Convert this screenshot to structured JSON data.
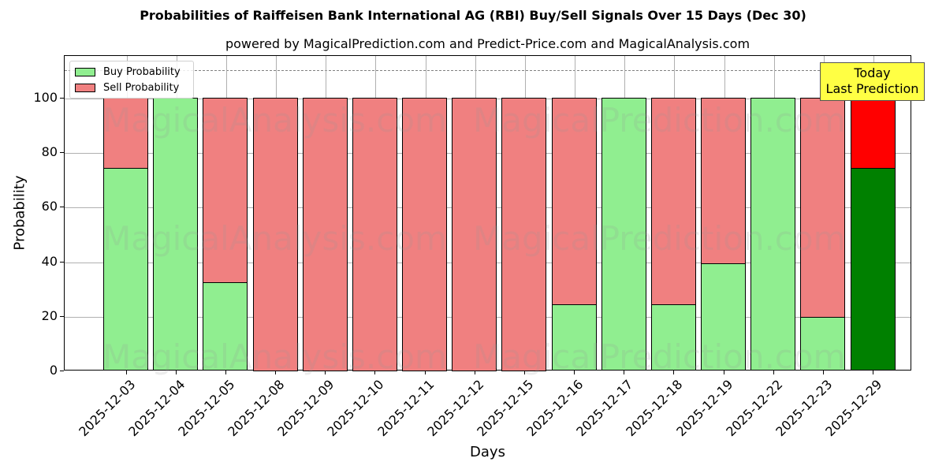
{
  "chart_data": {
    "type": "bar",
    "stacked": true,
    "title": "Probabilities of Raiffeisen Bank International AG (RBI) Buy/Sell Signals Over 15 Days (Dec 30)",
    "subtitle": "powered by MagicalPrediction.com and Predict-Price.com and MagicalAnalysis.com",
    "xlabel": "Days",
    "ylabel": "Probability",
    "ylim": [
      0,
      115
    ],
    "yticks": [
      0,
      20,
      40,
      60,
      80,
      100
    ],
    "grid": true,
    "legend_position": "upper left",
    "reference_line": {
      "y": 110,
      "style": "dashed",
      "color": "#808080"
    },
    "categories": [
      "2025-12-03",
      "2025-12-04",
      "2025-12-05",
      "2025-12-08",
      "2025-12-09",
      "2025-12-10",
      "2025-12-11",
      "2025-12-12",
      "2025-12-15",
      "2025-12-16",
      "2025-12-17",
      "2025-12-18",
      "2025-12-19",
      "2025-12-22",
      "2025-12-23",
      "2025-12-29"
    ],
    "series": [
      {
        "name": "Buy Probability",
        "color": "#90ee90",
        "values": [
          74.4,
          100,
          32.3,
          0,
          0,
          0,
          0,
          0,
          0,
          24.4,
          100,
          24.4,
          39.2,
          100,
          19.6,
          74.4
        ]
      },
      {
        "name": "Sell Probability",
        "color": "#f08080",
        "values": [
          25.6,
          0,
          67.7,
          100,
          100,
          100,
          100,
          100,
          100,
          75.6,
          0,
          75.6,
          60.8,
          0,
          80.4,
          25.6
        ]
      }
    ],
    "highlight": {
      "index": 15,
      "buy_color": "#008000",
      "sell_color": "#ff0000"
    },
    "annotation": "Today\nLast Prediction"
  },
  "legend": {
    "buy": "Buy Probability",
    "sell": "Sell Probability"
  },
  "annotation": {
    "line1": "Today",
    "line2": "Last Prediction"
  },
  "watermarks": [
    "MagicalAnalysis.com",
    "MagicalPrediction.com"
  ]
}
